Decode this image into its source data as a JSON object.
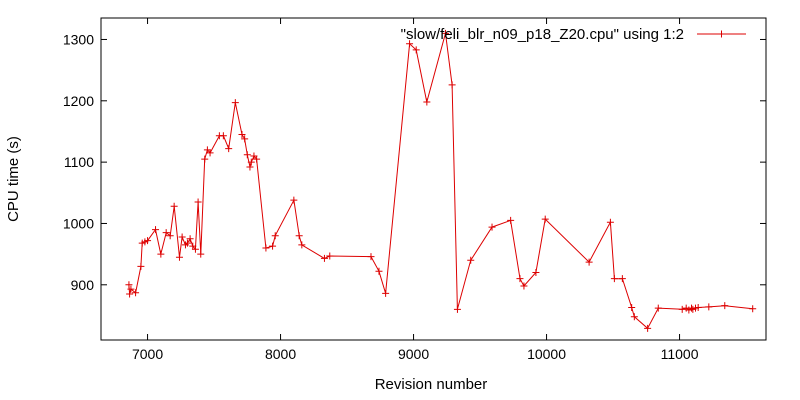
{
  "chart_data": {
    "type": "line",
    "title": "",
    "xlabel": "Revision number",
    "ylabel": "CPU time (s)",
    "xlim": [
      6650,
      11650
    ],
    "ylim": [
      810,
      1335
    ],
    "xticks": [
      7000,
      8000,
      9000,
      10000,
      11000
    ],
    "yticks": [
      900,
      1000,
      1100,
      1200,
      1300
    ],
    "grid": false,
    "legend_position": "top-right",
    "series": [
      {
        "name": "\"slow/feli_blr_n09_p18_Z20.cpu\" using 1:2",
        "color": "#dd0000",
        "marker": "plus",
        "points": [
          [
            6860,
            900
          ],
          [
            6865,
            885
          ],
          [
            6875,
            893
          ],
          [
            6910,
            887
          ],
          [
            6950,
            930
          ],
          [
            6960,
            968
          ],
          [
            6980,
            970
          ],
          [
            7000,
            972
          ],
          [
            7060,
            990
          ],
          [
            7100,
            950
          ],
          [
            7140,
            985
          ],
          [
            7170,
            980
          ],
          [
            7200,
            1028
          ],
          [
            7240,
            945
          ],
          [
            7260,
            978
          ],
          [
            7285,
            965
          ],
          [
            7300,
            968
          ],
          [
            7320,
            975
          ],
          [
            7340,
            963
          ],
          [
            7360,
            958
          ],
          [
            7380,
            1035
          ],
          [
            7400,
            950
          ],
          [
            7430,
            1105
          ],
          [
            7450,
            1120
          ],
          [
            7470,
            1115
          ],
          [
            7540,
            1143
          ],
          [
            7570,
            1143
          ],
          [
            7610,
            1122
          ],
          [
            7660,
            1197
          ],
          [
            7710,
            1145
          ],
          [
            7730,
            1138
          ],
          [
            7750,
            1112
          ],
          [
            7770,
            1092
          ],
          [
            7780,
            1100
          ],
          [
            7800,
            1110
          ],
          [
            7820,
            1105
          ],
          [
            7890,
            960
          ],
          [
            7940,
            963
          ],
          [
            7960,
            980
          ],
          [
            8100,
            1038
          ],
          [
            8140,
            980
          ],
          [
            8160,
            965
          ],
          [
            8330,
            943
          ],
          [
            8370,
            947
          ],
          [
            8680,
            946
          ],
          [
            8740,
            922
          ],
          [
            8790,
            886
          ],
          [
            8970,
            1293
          ],
          [
            9020,
            1283
          ],
          [
            9100,
            1198
          ],
          [
            9240,
            1310
          ],
          [
            9290,
            1226
          ],
          [
            9330,
            860
          ],
          [
            9430,
            940
          ],
          [
            9590,
            994
          ],
          [
            9730,
            1005
          ],
          [
            9800,
            910
          ],
          [
            9830,
            898
          ],
          [
            9920,
            920
          ],
          [
            9990,
            1007
          ],
          [
            10320,
            937
          ],
          [
            10480,
            1002
          ],
          [
            10510,
            910
          ],
          [
            10570,
            910
          ],
          [
            10640,
            863
          ],
          [
            10660,
            848
          ],
          [
            10760,
            829
          ],
          [
            10840,
            862
          ],
          [
            11020,
            860
          ],
          [
            11050,
            862
          ],
          [
            11070,
            859
          ],
          [
            11090,
            862
          ],
          [
            11100,
            860
          ],
          [
            11120,
            862
          ],
          [
            11140,
            863
          ],
          [
            11220,
            864
          ],
          [
            11340,
            866
          ],
          [
            11550,
            861
          ]
        ]
      }
    ]
  }
}
